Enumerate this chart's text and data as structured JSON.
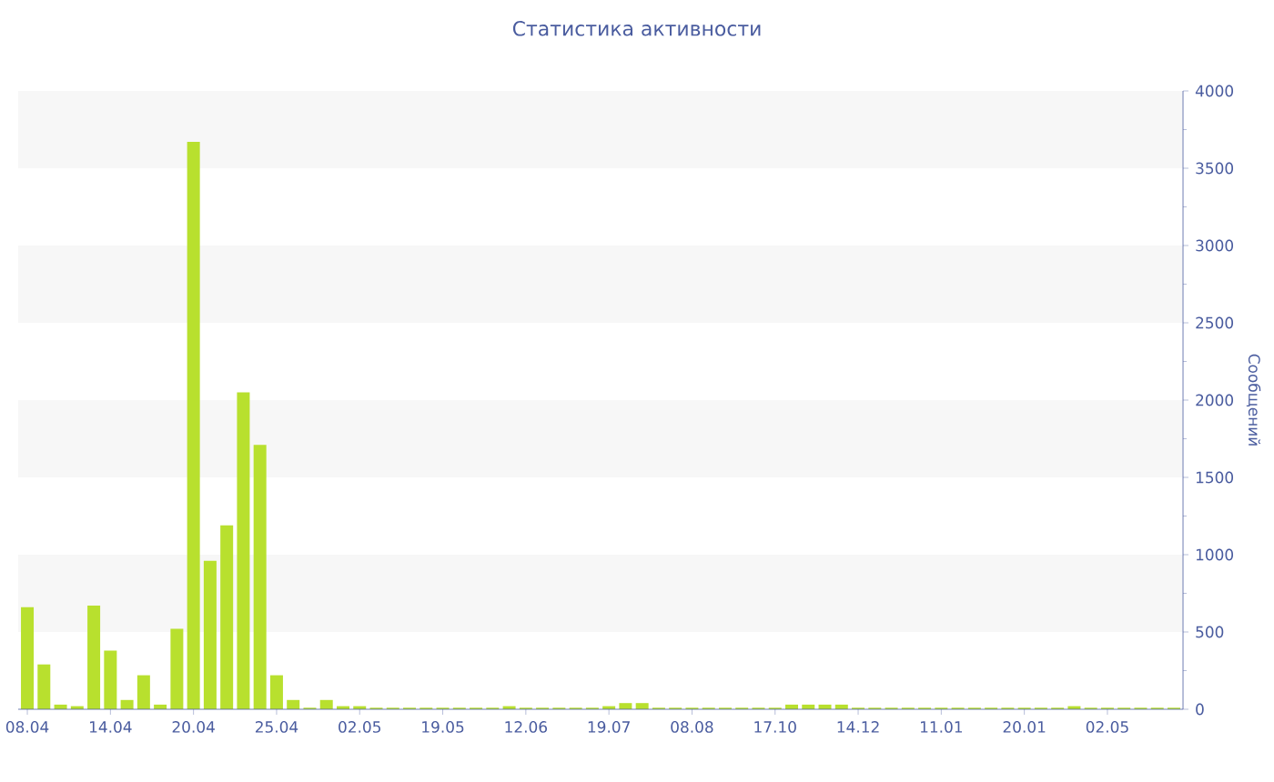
{
  "chart_data": {
    "type": "bar",
    "title": "Статистика активности",
    "ylabel": "Сообщений",
    "categories": [
      "08.04",
      null,
      null,
      null,
      null,
      "14.04",
      null,
      null,
      null,
      null,
      "20.04",
      null,
      null,
      null,
      null,
      "25.04",
      null,
      null,
      null,
      null,
      "02.05",
      null,
      null,
      null,
      null,
      "19.05",
      null,
      null,
      null,
      null,
      "12.06",
      null,
      null,
      null,
      null,
      "19.07",
      null,
      null,
      null,
      null,
      "08.08",
      null,
      null,
      null,
      null,
      "17.10",
      null,
      null,
      null,
      null,
      "14.12",
      null,
      null,
      null,
      null,
      "11.01",
      null,
      null,
      null,
      null,
      "20.01",
      null,
      null,
      null,
      null,
      "02.05",
      null,
      null,
      null,
      null
    ],
    "values": [
      660,
      290,
      30,
      20,
      670,
      380,
      60,
      220,
      30,
      520,
      3670,
      960,
      1190,
      2050,
      1710,
      220,
      60,
      10,
      60,
      20,
      20,
      10,
      10,
      10,
      10,
      10,
      10,
      10,
      10,
      20,
      10,
      10,
      10,
      10,
      10,
      20,
      40,
      40,
      10,
      10,
      10,
      10,
      10,
      10,
      10,
      10,
      30,
      30,
      30,
      30,
      10,
      10,
      10,
      10,
      10,
      10,
      10,
      10,
      10,
      10,
      10,
      10,
      10,
      20,
      10,
      10,
      10,
      10,
      10,
      10
    ],
    "color": "#b8e02e",
    "ylim": [
      0,
      4000
    ],
    "yticks": [
      0,
      500,
      1000,
      1500,
      2000,
      2500,
      3000,
      3500,
      4000
    ],
    "bands": [
      {
        "axis": "y",
        "from": 500,
        "to": 1000,
        "color": "#f7f7f7"
      },
      {
        "axis": "y",
        "from": 1500,
        "to": 2000,
        "color": "#f7f7f7"
      },
      {
        "axis": "y",
        "from": 2500,
        "to": 3000,
        "color": "#f7f7f7"
      },
      {
        "axis": "y",
        "from": 3500,
        "to": 4000,
        "color": "#f7f7f7"
      }
    ]
  }
}
